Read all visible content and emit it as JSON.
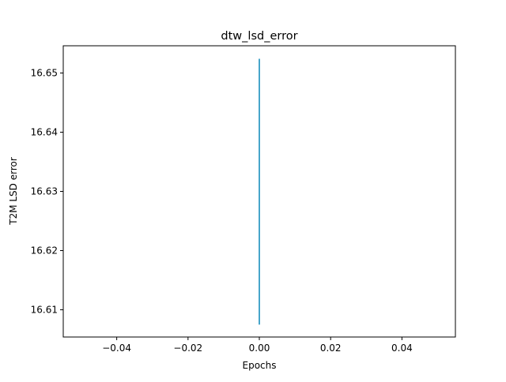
{
  "chart_data": {
    "type": "line",
    "title": "dtw_lsd_error",
    "xlabel": "Epochs",
    "ylabel": "T2M LSD error",
    "xlim": [
      -0.055,
      0.055
    ],
    "ylim": [
      16.6054,
      16.6546
    ],
    "xticks": [
      -0.04,
      -0.02,
      0.0,
      0.02,
      0.04
    ],
    "xtick_labels": [
      "−0.04",
      "−0.02",
      "0.00",
      "0.02",
      "0.04"
    ],
    "yticks": [
      16.61,
      16.62,
      16.63,
      16.64,
      16.65
    ],
    "ytick_labels": [
      "16.61",
      "16.62",
      "16.63",
      "16.64",
      "16.65"
    ],
    "grid": false,
    "series": [
      {
        "x": [
          0,
          0
        ],
        "y": [
          16.6075,
          16.6524
        ],
        "color": "#1f77b4",
        "overlay_color": "#17becf"
      }
    ]
  }
}
